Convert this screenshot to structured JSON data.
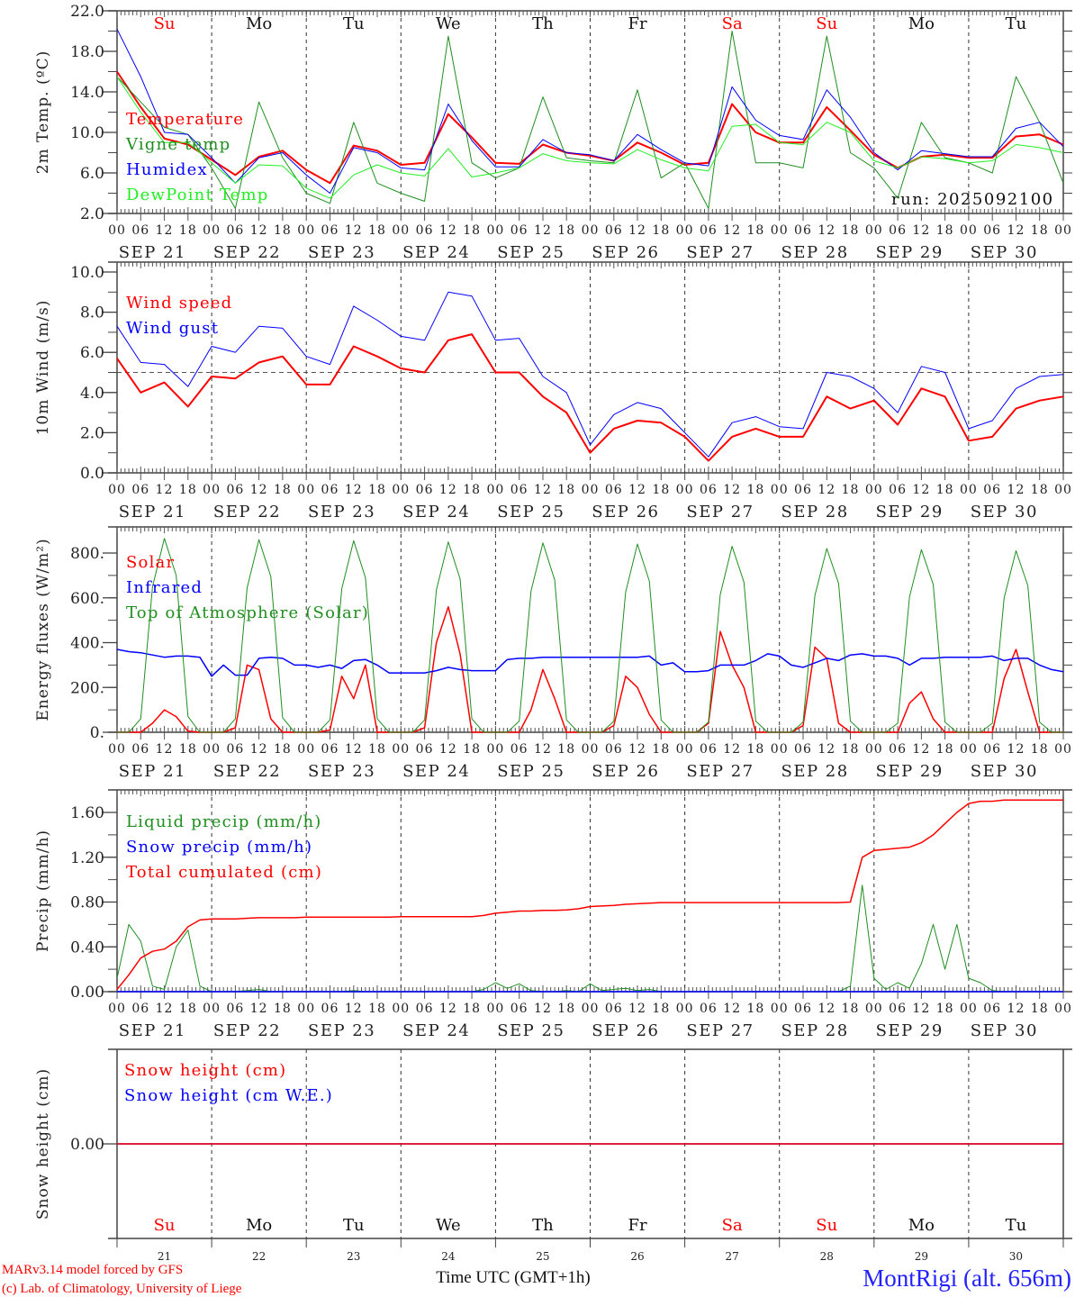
{
  "axis": {
    "hour_labels": [
      "00",
      "06",
      "12",
      "18"
    ],
    "date_labels": [
      "SEP 21",
      "SEP 22",
      "SEP 23",
      "SEP 24",
      "SEP 25",
      "SEP 26",
      "SEP 27",
      "SEP 28",
      "SEP 29",
      "SEP 30"
    ],
    "days_of_week": [
      "Su",
      "Mo",
      "Tu",
      "We",
      "Th",
      "Fr",
      "Sa",
      "Su",
      "Mo",
      "Tu"
    ],
    "weekend": [
      true,
      false,
      false,
      false,
      false,
      false,
      true,
      true,
      false,
      false
    ],
    "day_numbers": [
      "21",
      "22",
      "23",
      "24",
      "25",
      "26",
      "27",
      "28",
      "29",
      "30"
    ],
    "total_hours": 240
  },
  "run_label": "run: 2025092100",
  "footer": {
    "model": "MARv3.14 model forced by GFS",
    "copyright": "(c) Lab. of Climatology, University of Liege",
    "xlabel": "Time UTC (GMT+1h)",
    "station": "MontRigi (alt. 656m)"
  },
  "colors": {
    "red": "#ff0000",
    "green": "#1f8f1f",
    "lightgreen": "#22ee22",
    "blue": "#0000ff",
    "weekend": "#ff0000",
    "weekday": "#111111",
    "station": "#2222ff"
  },
  "chart_data": [
    {
      "type": "line",
      "ylabel": "2m Temp. (ºC)",
      "ylim": [
        2,
        22
      ],
      "y_ticks": [
        2,
        6,
        10,
        14,
        18,
        22
      ],
      "y_tick_labels": [
        "2.0",
        "6.0",
        "10.0",
        "14.0",
        "18.0",
        "22.0"
      ],
      "minor_step": 2,
      "series": [
        {
          "name": "Temperature",
          "color": "#ff0000",
          "step_hours": 6,
          "width": 2,
          "values": [
            16.0,
            12.5,
            9.4,
            8.8,
            7.3,
            5.8,
            7.6,
            8.2,
            6.3,
            5.0,
            8.7,
            8.2,
            6.8,
            7.0,
            11.8,
            9.5,
            7.0,
            6.9,
            8.8,
            8.0,
            7.7,
            7.2,
            9.0,
            8.0,
            6.8,
            7.0,
            12.8,
            10.0,
            9.0,
            9.0,
            12.5,
            10.2,
            7.8,
            6.5,
            7.6,
            7.8,
            7.5,
            7.5,
            9.6,
            9.8,
            8.8
          ]
        },
        {
          "name": "Vigne temp",
          "color": "#1f8f1f",
          "step_hours": 6,
          "width": 1,
          "values": [
            15.5,
            13.0,
            10.5,
            9.8,
            6.5,
            2.5,
            13.0,
            7.5,
            4.0,
            3.0,
            11.0,
            5.0,
            4.0,
            3.2,
            19.5,
            7.0,
            5.5,
            6.5,
            13.5,
            7.5,
            7.2,
            7.0,
            14.2,
            5.5,
            7.0,
            2.5,
            20.0,
            7.0,
            7.0,
            6.5,
            19.5,
            8.0,
            6.5,
            3.5,
            11.0,
            7.5,
            7.0,
            6.0,
            15.5,
            11.0,
            5.0
          ]
        },
        {
          "name": "Humidex",
          "color": "#0000ff",
          "step_hours": 6,
          "width": 1,
          "values": [
            20.2,
            15.5,
            10.0,
            9.8,
            7.5,
            5.0,
            7.5,
            8.0,
            5.8,
            4.0,
            8.5,
            8.0,
            6.5,
            6.3,
            12.8,
            9.2,
            6.6,
            6.6,
            9.3,
            8.0,
            7.8,
            7.2,
            9.8,
            8.3,
            7.0,
            6.7,
            14.5,
            11.2,
            9.7,
            9.3,
            14.2,
            11.5,
            8.0,
            6.3,
            8.2,
            7.9,
            7.6,
            7.6,
            10.4,
            11.0,
            8.6
          ]
        },
        {
          "name": "DewPoint Temp",
          "color": "#22ee22",
          "step_hours": 6,
          "width": 1,
          "values": [
            15.5,
            12.0,
            9.0,
            9.0,
            7.0,
            5.0,
            6.8,
            6.7,
            4.5,
            3.5,
            5.8,
            6.8,
            6.0,
            5.7,
            8.4,
            5.6,
            6.0,
            6.5,
            7.9,
            7.2,
            7.0,
            6.9,
            8.3,
            7.3,
            6.5,
            6.2,
            10.6,
            10.8,
            9.0,
            8.8,
            11.0,
            10.0,
            7.2,
            6.5,
            7.6,
            7.4,
            7.0,
            7.2,
            8.8,
            8.5,
            8.0
          ]
        }
      ]
    },
    {
      "type": "line",
      "ylabel": "10m Wind (m/s)",
      "ylim": [
        0,
        10
      ],
      "y_ticks": [
        0,
        2,
        4,
        6,
        8,
        10
      ],
      "y_tick_labels": [
        "0.0",
        "2.0",
        "4.0",
        "6.0",
        "8.0",
        "10.0"
      ],
      "minor_step": 1,
      "reference_line": 5,
      "series": [
        {
          "name": "Wind speed",
          "color": "#ff0000",
          "step_hours": 6,
          "width": 2,
          "values": [
            5.7,
            4.0,
            4.5,
            3.3,
            4.8,
            4.7,
            5.5,
            5.8,
            4.4,
            4.4,
            6.3,
            5.8,
            5.2,
            5.0,
            6.6,
            6.9,
            5.0,
            5.0,
            3.8,
            3.0,
            1.0,
            2.2,
            2.6,
            2.5,
            1.8,
            0.6,
            1.8,
            2.2,
            1.8,
            1.8,
            3.8,
            3.2,
            3.6,
            2.4,
            4.2,
            3.8,
            1.6,
            1.8,
            3.2,
            3.6,
            3.8
          ]
        },
        {
          "name": "Wind gust",
          "color": "#0000ff",
          "step_hours": 6,
          "width": 1,
          "values": [
            7.3,
            5.5,
            5.4,
            4.3,
            6.3,
            6.0,
            7.3,
            7.2,
            5.8,
            5.4,
            8.3,
            7.6,
            6.8,
            6.6,
            9.0,
            8.8,
            6.6,
            6.7,
            4.8,
            4.0,
            1.4,
            2.9,
            3.5,
            3.2,
            2.0,
            0.8,
            2.5,
            2.8,
            2.3,
            2.2,
            5.0,
            4.8,
            4.2,
            3.0,
            5.3,
            5.0,
            2.2,
            2.6,
            4.2,
            4.8,
            4.9
          ]
        }
      ]
    },
    {
      "type": "line",
      "ylabel": "Energy fluxes (W/m²)",
      "ylim": [
        0,
        800
      ],
      "y_ticks": [
        0,
        200,
        400,
        600,
        800
      ],
      "y_tick_labels": [
        "0.",
        "200.",
        "400.",
        "600.",
        "800."
      ],
      "minor_step": 100,
      "series": [
        {
          "name": "Solar",
          "color": "#ff0000",
          "step_hours": 3,
          "width": 1.5,
          "values": [
            0,
            0,
            0,
            40,
            100,
            70,
            5,
            0,
            0,
            0,
            20,
            300,
            280,
            60,
            0,
            0,
            0,
            0,
            10,
            250,
            150,
            300,
            0,
            0,
            0,
            0,
            20,
            400,
            560,
            350,
            0,
            0,
            0,
            0,
            0,
            100,
            280,
            150,
            0,
            0,
            0,
            0,
            30,
            250,
            200,
            80,
            0,
            0,
            0,
            0,
            40,
            450,
            300,
            200,
            0,
            0,
            0,
            0,
            30,
            380,
            330,
            40,
            0,
            0,
            0,
            0,
            0,
            130,
            180,
            60,
            0,
            0,
            0,
            0,
            0,
            240,
            370,
            180,
            0,
            0,
            0
          ]
        },
        {
          "name": "Infrared",
          "color": "#0000ff",
          "step_hours": 3,
          "width": 1.5,
          "values": [
            370,
            360,
            355,
            345,
            335,
            340,
            340,
            335,
            250,
            300,
            255,
            255,
            330,
            335,
            330,
            300,
            300,
            290,
            300,
            285,
            320,
            325,
            300,
            265,
            265,
            265,
            265,
            275,
            290,
            280,
            275,
            275,
            275,
            325,
            330,
            330,
            335,
            335,
            335,
            335,
            335,
            335,
            335,
            335,
            335,
            340,
            300,
            310,
            270,
            270,
            275,
            300,
            300,
            300,
            320,
            350,
            340,
            300,
            290,
            310,
            330,
            320,
            345,
            350,
            340,
            340,
            330,
            300,
            330,
            330,
            335,
            335,
            335,
            335,
            340,
            320,
            330,
            330,
            300,
            280,
            270
          ]
        },
        {
          "name": "Top of Atmosphere (Solar)",
          "color": "#1f8f1f",
          "step_hours": 3,
          "width": 1,
          "values": [
            0,
            0,
            60,
            650,
            865,
            700,
            70,
            0,
            0,
            0,
            60,
            645,
            860,
            695,
            65,
            0,
            0,
            0,
            55,
            640,
            855,
            690,
            60,
            0,
            0,
            0,
            55,
            635,
            850,
            685,
            60,
            0,
            0,
            0,
            50,
            630,
            845,
            680,
            55,
            0,
            0,
            0,
            50,
            625,
            840,
            675,
            55,
            0,
            0,
            0,
            45,
            615,
            830,
            670,
            50,
            0,
            0,
            0,
            45,
            610,
            820,
            665,
            50,
            0,
            0,
            0,
            40,
            605,
            815,
            660,
            45,
            0,
            0,
            0,
            40,
            600,
            810,
            655,
            45,
            0,
            0
          ]
        }
      ]
    },
    {
      "type": "line",
      "ylabel": "Precip (mm/h)",
      "ylim": [
        0,
        1.6
      ],
      "y_ticks": [
        0,
        0.4,
        0.8,
        1.2,
        1.6
      ],
      "y_tick_labels": [
        "0.00",
        "0.40",
        "0.80",
        "1.20",
        "1.60"
      ],
      "minor_step": 0.2,
      "series": [
        {
          "name": "Liquid precip (mm/h)",
          "color": "#1f8f1f",
          "step_hours": 3,
          "width": 1,
          "values": [
            0.12,
            0.6,
            0.45,
            0.05,
            0.02,
            0.4,
            0.55,
            0.05,
            0,
            0,
            0,
            0.01,
            0.02,
            0,
            0,
            0,
            0,
            0,
            0,
            0,
            0.01,
            0,
            0,
            0,
            0,
            0,
            0,
            0,
            0,
            0,
            0,
            0.02,
            0.08,
            0.03,
            0.07,
            0.01,
            0,
            0,
            0.01,
            0,
            0.07,
            0.01,
            0.02,
            0.03,
            0.01,
            0.02,
            0,
            0,
            0,
            0,
            0,
            0,
            0,
            0,
            0,
            0,
            0,
            0,
            0,
            0,
            0,
            0,
            0.05,
            0.95,
            0.12,
            0.02,
            0.08,
            0.03,
            0.25,
            0.6,
            0.2,
            0.6,
            0.12,
            0.08,
            0.01,
            0,
            0,
            0,
            0,
            0,
            0
          ]
        },
        {
          "name": "Snow precip (mm/h)",
          "color": "#0000ff",
          "step_hours": 240,
          "width": 1.5,
          "values": [
            0,
            0
          ]
        },
        {
          "name": "Total cumulated (cm)",
          "color": "#ff0000",
          "step_hours": 3,
          "width": 1.5,
          "values": [
            0.02,
            0.15,
            0.3,
            0.36,
            0.38,
            0.45,
            0.58,
            0.64,
            0.65,
            0.65,
            0.65,
            0.655,
            0.66,
            0.66,
            0.66,
            0.66,
            0.665,
            0.665,
            0.665,
            0.665,
            0.665,
            0.665,
            0.665,
            0.665,
            0.67,
            0.67,
            0.67,
            0.67,
            0.67,
            0.67,
            0.67,
            0.68,
            0.7,
            0.71,
            0.72,
            0.72,
            0.725,
            0.725,
            0.73,
            0.74,
            0.76,
            0.765,
            0.77,
            0.78,
            0.785,
            0.79,
            0.795,
            0.795,
            0.795,
            0.795,
            0.795,
            0.795,
            0.795,
            0.795,
            0.795,
            0.795,
            0.795,
            0.795,
            0.795,
            0.795,
            0.795,
            0.795,
            0.8,
            1.2,
            1.26,
            1.27,
            1.28,
            1.29,
            1.33,
            1.4,
            1.5,
            1.6,
            1.68,
            1.7,
            1.7,
            1.71,
            1.71,
            1.71,
            1.71,
            1.71,
            1.71
          ]
        }
      ]
    },
    {
      "type": "line",
      "ylabel": "Snow height (cm)",
      "ylim": [
        0,
        1
      ],
      "y_ticks": [
        0
      ],
      "y_tick_labels": [
        "0.00"
      ],
      "minor_step": 0,
      "series": [
        {
          "name": "Snow height (cm W.E.)",
          "color": "#0000ff",
          "step_hours": 240,
          "width": 1.5,
          "values": [
            0,
            0
          ]
        },
        {
          "name": "Snow height (cm)",
          "color": "#ff0000",
          "step_hours": 240,
          "width": 1.5,
          "values": [
            0,
            0
          ]
        }
      ],
      "legend_order": [
        1,
        0
      ]
    }
  ]
}
